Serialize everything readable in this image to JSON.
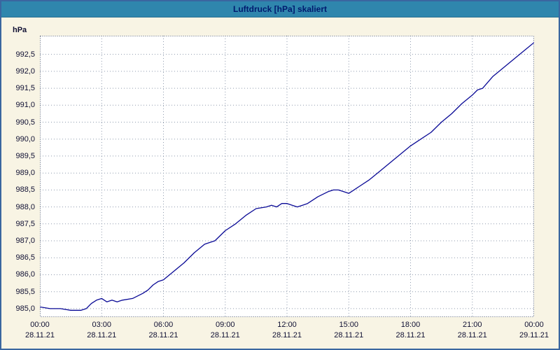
{
  "title": "Luftdruck [hPa] skaliert",
  "chart_data": {
    "type": "line",
    "title": "Luftdruck [hPa] skaliert",
    "xlabel": "",
    "ylabel": "hPa",
    "series_name": "Luftdruck",
    "xlim": [
      0,
      24
    ],
    "ylim": [
      984.75,
      993.05
    ],
    "grid": true,
    "legend": "none",
    "xgrid_hours": [
      3,
      6,
      9,
      12,
      15,
      18,
      21
    ],
    "yticks": [
      {
        "v": 992.5,
        "label": "992,5"
      },
      {
        "v": 992.0,
        "label": "992,0"
      },
      {
        "v": 991.5,
        "label": "991,5"
      },
      {
        "v": 991.0,
        "label": "991,0"
      },
      {
        "v": 990.5,
        "label": "990,5"
      },
      {
        "v": 990.0,
        "label": "990,0"
      },
      {
        "v": 989.5,
        "label": "989,5"
      },
      {
        "v": 989.0,
        "label": "989,0"
      },
      {
        "v": 988.5,
        "label": "988,5"
      },
      {
        "v": 988.0,
        "label": "988,0"
      },
      {
        "v": 987.5,
        "label": "987,5"
      },
      {
        "v": 987.0,
        "label": "987,0"
      },
      {
        "v": 986.5,
        "label": "986,5"
      },
      {
        "v": 986.0,
        "label": "986,0"
      },
      {
        "v": 985.5,
        "label": "985,5"
      },
      {
        "v": 985.0,
        "label": "985,0"
      }
    ],
    "xticks": [
      {
        "t": 0,
        "time": "00:00",
        "date": "28.11.21"
      },
      {
        "t": 3,
        "time": "03:00",
        "date": "28.11.21"
      },
      {
        "t": 6,
        "time": "06:00",
        "date": "28.11.21"
      },
      {
        "t": 9,
        "time": "09:00",
        "date": "28.11.21"
      },
      {
        "t": 12,
        "time": "12:00",
        "date": "28.11.21"
      },
      {
        "t": 15,
        "time": "15:00",
        "date": "28.11.21"
      },
      {
        "t": 18,
        "time": "18:00",
        "date": "28.11.21"
      },
      {
        "t": 21,
        "time": "21:00",
        "date": "28.11.21"
      },
      {
        "t": 24,
        "time": "00:00",
        "date": "29.11.21"
      }
    ],
    "points": [
      [
        0.0,
        985.05
      ],
      [
        0.5,
        985.0
      ],
      [
        1.0,
        985.0
      ],
      [
        1.5,
        984.95
      ],
      [
        2.0,
        984.95
      ],
      [
        2.25,
        985.0
      ],
      [
        2.5,
        985.15
      ],
      [
        2.75,
        985.25
      ],
      [
        3.0,
        985.3
      ],
      [
        3.25,
        985.2
      ],
      [
        3.5,
        985.25
      ],
      [
        3.75,
        985.2
      ],
      [
        4.0,
        985.25
      ],
      [
        4.5,
        985.3
      ],
      [
        5.0,
        985.45
      ],
      [
        5.25,
        985.55
      ],
      [
        5.5,
        985.7
      ],
      [
        5.75,
        985.8
      ],
      [
        6.0,
        985.85
      ],
      [
        6.5,
        986.1
      ],
      [
        7.0,
        986.35
      ],
      [
        7.5,
        986.65
      ],
      [
        8.0,
        986.9
      ],
      [
        8.25,
        986.95
      ],
      [
        8.5,
        987.0
      ],
      [
        9.0,
        987.3
      ],
      [
        9.5,
        987.5
      ],
      [
        10.0,
        987.75
      ],
      [
        10.5,
        987.95
      ],
      [
        11.0,
        988.0
      ],
      [
        11.25,
        988.05
      ],
      [
        11.5,
        988.0
      ],
      [
        11.75,
        988.1
      ],
      [
        12.0,
        988.1
      ],
      [
        12.25,
        988.05
      ],
      [
        12.5,
        988.0
      ],
      [
        12.75,
        988.05
      ],
      [
        13.0,
        988.1
      ],
      [
        13.5,
        988.3
      ],
      [
        14.0,
        988.45
      ],
      [
        14.25,
        988.5
      ],
      [
        14.5,
        988.5
      ],
      [
        14.75,
        988.45
      ],
      [
        15.0,
        988.4
      ],
      [
        15.25,
        988.5
      ],
      [
        15.5,
        988.6
      ],
      [
        16.0,
        988.8
      ],
      [
        16.5,
        989.05
      ],
      [
        17.0,
        989.3
      ],
      [
        17.5,
        989.55
      ],
      [
        18.0,
        989.8
      ],
      [
        18.5,
        990.0
      ],
      [
        19.0,
        990.2
      ],
      [
        19.5,
        990.5
      ],
      [
        20.0,
        990.75
      ],
      [
        20.5,
        991.05
      ],
      [
        21.0,
        991.3
      ],
      [
        21.25,
        991.45
      ],
      [
        21.5,
        991.5
      ],
      [
        22.0,
        991.85
      ],
      [
        22.5,
        992.1
      ],
      [
        23.0,
        992.35
      ],
      [
        23.5,
        992.6
      ],
      [
        24.0,
        992.85
      ]
    ],
    "colors": {
      "line": "#0a0a96",
      "titlebar_bg": "#2f86ad",
      "title_text": "#001a6e",
      "page_bg": "#f8f4e4",
      "plot_bg": "#ffffff",
      "grid": "#8f9bae"
    }
  }
}
